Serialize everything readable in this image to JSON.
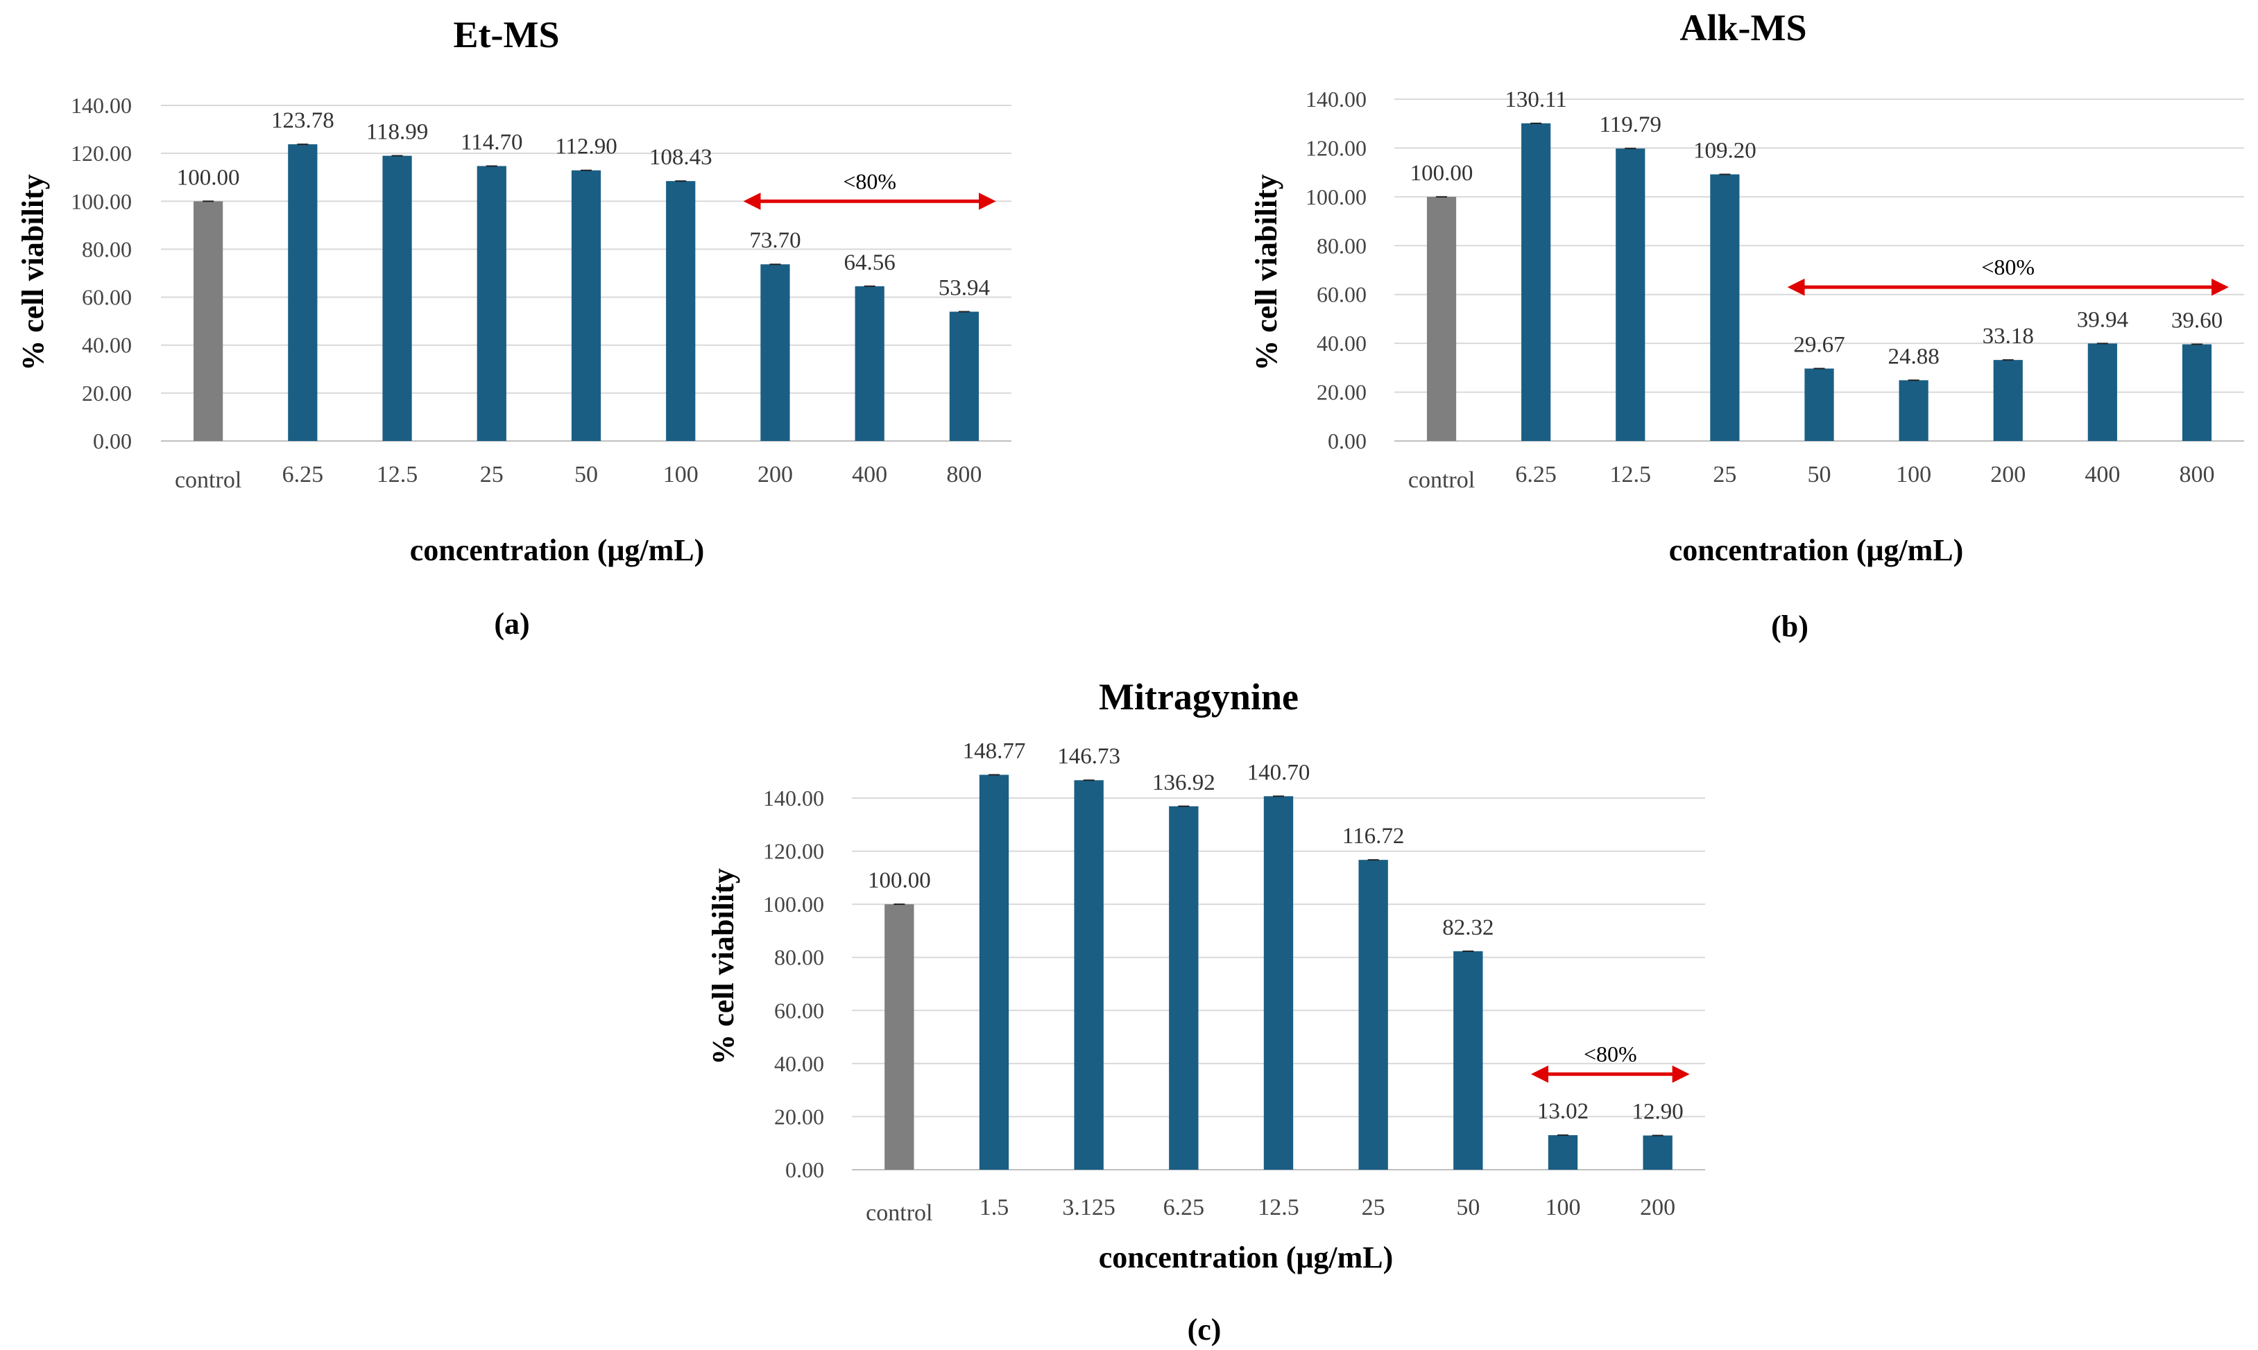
{
  "chart_data": [
    {
      "id": "a",
      "type": "bar",
      "title": "Et-MS",
      "panel_label": "(a)",
      "xlabel": "concentration (μg/mL)",
      "ylabel": "% cell viability",
      "ylim": [
        0,
        140
      ],
      "ytick_step": 20,
      "ytick_labels": [
        "0.00",
        "20.00",
        "40.00",
        "60.00",
        "80.00",
        "100.00",
        "120.00",
        "140.00"
      ],
      "grid": true,
      "categories": [
        "control",
        "6.25",
        "12.5",
        "25",
        "50",
        "100",
        "200",
        "400",
        "800"
      ],
      "values": [
        100.0,
        123.78,
        118.99,
        114.7,
        112.9,
        108.43,
        73.7,
        64.56,
        53.94
      ],
      "value_labels": [
        "100.00",
        "123.78",
        "118.99",
        "114.70",
        "112.90",
        "108.43",
        "73.70",
        "64.56",
        "53.94"
      ],
      "colors": {
        "control": "#7f7f7f",
        "sample": "#1a5e84"
      },
      "annotation": {
        "text": "<80%",
        "from_category": 6,
        "to_category": 8,
        "y_value": 100,
        "color": "#e00000"
      }
    },
    {
      "id": "b",
      "type": "bar",
      "title": "Alk-MS",
      "panel_label": "(b)",
      "xlabel": "concentration (μg/mL)",
      "ylabel": "% cell viability",
      "ylim": [
        0,
        140
      ],
      "ytick_step": 20,
      "ytick_labels": [
        "0.00",
        "20.00",
        "40.00",
        "60.00",
        "80.00",
        "100.00",
        "120.00",
        "140.00"
      ],
      "grid": true,
      "categories": [
        "control",
        "6.25",
        "12.5",
        "25",
        "50",
        "100",
        "200",
        "400",
        "800"
      ],
      "values": [
        100.0,
        130.11,
        119.79,
        109.2,
        29.67,
        24.88,
        33.18,
        39.94,
        39.6
      ],
      "value_labels": [
        "100.00",
        "130.11",
        "119.79",
        "109.20",
        "29.67",
        "24.88",
        "33.18",
        "39.94",
        "39.60"
      ],
      "colors": {
        "control": "#7f7f7f",
        "sample": "#1a5e84"
      },
      "annotation": {
        "text": "<80%",
        "from_category": 4,
        "to_category": 8,
        "y_value": 63,
        "color": "#e00000"
      }
    },
    {
      "id": "c",
      "type": "bar",
      "title": "Mitragynine",
      "panel_label": "(c)",
      "xlabel": "concentration (μg/mL)",
      "ylabel": "% cell viability",
      "ylim": [
        0,
        140
      ],
      "ytick_step": 20,
      "ytick_labels": [
        "0.00",
        "20.00",
        "40.00",
        "60.00",
        "80.00",
        "100.00",
        "120.00",
        "140.00"
      ],
      "grid": true,
      "categories": [
        "control",
        "1.5",
        "3.125",
        "6.25",
        "12.5",
        "25",
        "50",
        "100",
        "200"
      ],
      "values": [
        100.0,
        148.77,
        146.73,
        136.92,
        140.7,
        116.72,
        82.32,
        13.02,
        12.9
      ],
      "value_labels": [
        "100.00",
        "148.77",
        "146.73",
        "136.92",
        "140.70",
        "116.72",
        "82.32",
        "13.02",
        "12.90"
      ],
      "colors": {
        "control": "#7f7f7f",
        "sample": "#1a5e84"
      },
      "annotation": {
        "text": "<80%",
        "from_category": 7,
        "to_category": 8,
        "y_value": 36,
        "color": "#e00000"
      }
    }
  ]
}
